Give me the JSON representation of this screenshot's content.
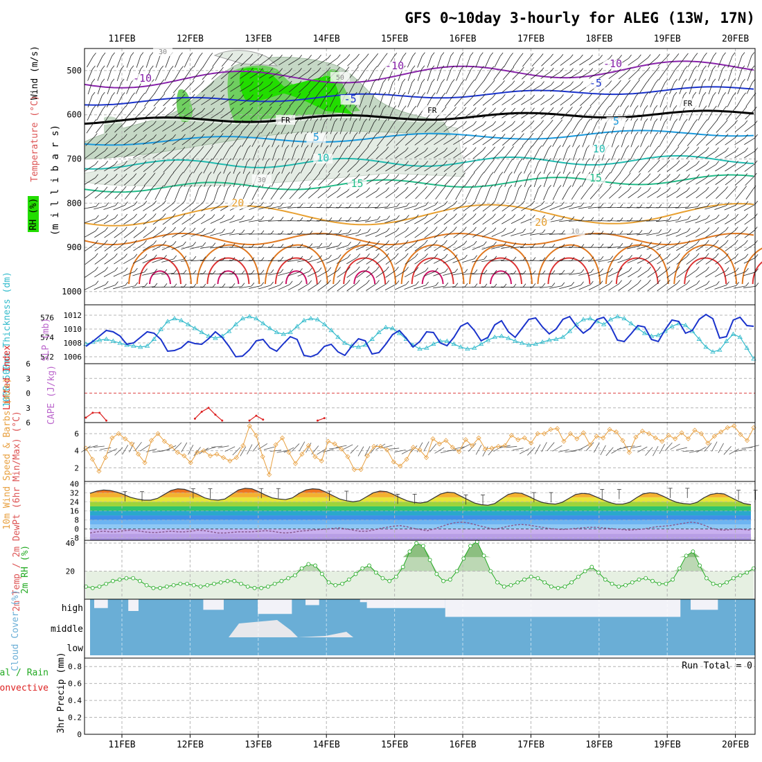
{
  "header": {
    "title": "GFS 0~10day 3-hourly for ALEG (13W, 17N)"
  },
  "colors": {
    "frame": "#000000",
    "grid": "#b4b4b4",
    "rh_green": "#22dd00",
    "slp": "#1a33cc",
    "thickness": "#33bbcc",
    "wind_speed": "#e8a040",
    "rh2m": "#22aa22",
    "cloud": "#6aaed6",
    "dewpt": "#9a6ab0",
    "precip_total": "#22aa22",
    "precip_conv": "#dd2222",
    "lifted": "#dd2222",
    "cape": "#bb66cc"
  },
  "time_axis": {
    "day_labels": [
      "11FEB",
      "12FEB",
      "13FEB",
      "14FEB",
      "15FEB",
      "16FEB",
      "17FEB",
      "18FEB",
      "19FEB",
      "20FEB"
    ]
  },
  "chart_data": [
    {
      "type": "contour",
      "panel": "upper_air",
      "ylabels": {
        "wind": "Wind (m/s)",
        "temp": "Temperature (°C)",
        "rh": "RH (%)",
        "pressure": "(m i l l i b a r s)"
      },
      "ylim": [
        1030,
        450
      ],
      "yticks": [
        500,
        600,
        700,
        800,
        900,
        1000
      ],
      "isotherm_labels": [
        {
          "text": "-10",
          "t": 0.3
        },
        {
          "text": "-10",
          "t": 4.0
        },
        {
          "text": "-10",
          "t": 7.2
        },
        {
          "text": "-5",
          "t": 3.35
        },
        {
          "text": "-5",
          "t": 6.95
        },
        {
          "text": "FR",
          "t": 2.4
        },
        {
          "text": "FR",
          "t": 4.55
        },
        {
          "text": "FR",
          "t": 8.3
        },
        {
          "text": "5",
          "t": 2.85
        },
        {
          "text": "5",
          "t": 7.25
        },
        {
          "text": "10",
          "t": 2.95
        },
        {
          "text": "10",
          "t": 7.0
        },
        {
          "text": "15",
          "t": 3.45
        },
        {
          "text": "15",
          "t": 6.95
        },
        {
          "text": "20",
          "t": 1.7
        },
        {
          "text": "20",
          "t": 6.15
        },
        {
          "text": "30",
          "t": 2.05
        },
        {
          "text": "30",
          "t": 0.6
        },
        {
          "text": "50",
          "t": 3.2
        },
        {
          "text": "10",
          "t": 6.65
        }
      ]
    },
    {
      "type": "line",
      "panel": "slp_thickness",
      "ylabel_left": "1000-500mb Thickness (dm)",
      "ylabel_right": "SLP (mb)",
      "left_ticks": [
        572,
        574,
        576
      ],
      "right_ticks": [
        1006,
        1008,
        1010,
        1012
      ],
      "slp_range": [
        1005,
        1013.5
      ],
      "thickness_range": [
        571.3,
        577.3
      ],
      "series": [
        {
          "name": "SLP (mb)",
          "values": [
            1007.5,
            1008.2,
            1009.0,
            1009.8,
            1009.6,
            1009.0,
            1007.8,
            1008.0,
            1008.8,
            1009.6,
            1009.4,
            1008.5,
            1006.8,
            1006.9,
            1007.3,
            1008.2,
            1007.9,
            1007.8,
            1008.6,
            1009.6,
            1008.8,
            1007.5,
            1006.0,
            1006.1,
            1007.0,
            1008.3,
            1008.5,
            1007.3,
            1006.8,
            1007.9,
            1008.9,
            1008.5,
            1006.2,
            1006.0,
            1006.4,
            1007.5,
            1007.8,
            1006.7,
            1006.2,
            1007.5,
            1008.6,
            1008.3,
            1006.4,
            1006.6,
            1007.8,
            1009.2,
            1009.8,
            1008.7,
            1007.4,
            1008.2,
            1009.6,
            1009.5,
            1008.0,
            1007.6,
            1008.8,
            1010.4,
            1010.9,
            1009.8,
            1008.3,
            1008.8,
            1010.6,
            1011.2,
            1009.6,
            1008.8,
            1010.1,
            1011.4,
            1011.6,
            1010.3,
            1009.3,
            1010.0,
            1011.4,
            1011.8,
            1010.4,
            1009.4,
            1010.1,
            1011.4,
            1011.7,
            1010.4,
            1008.4,
            1008.2,
            1009.3,
            1010.5,
            1010.3,
            1008.5,
            1008.2,
            1009.9,
            1011.3,
            1011.1,
            1009.4,
            1009.8,
            1011.4,
            1012.1,
            1011.5,
            1008.7,
            1008.9,
            1011.3,
            1011.7,
            1010.5,
            1010.4
          ]
        },
        {
          "name": "1000-500mb Thickness (dm)",
          "values": [
            573.3,
            573.5,
            573.7,
            573.8,
            573.6,
            573.4,
            573.2,
            573.1,
            573.0,
            573.1,
            573.8,
            574.8,
            575.6,
            575.9,
            575.7,
            575.3,
            574.9,
            574.5,
            574.1,
            573.9,
            574.1,
            574.6,
            575.3,
            575.9,
            576.1,
            575.9,
            575.4,
            574.9,
            574.5,
            574.3,
            574.5,
            575.1,
            575.7,
            575.9,
            575.8,
            575.3,
            574.7,
            574.0,
            573.4,
            573.1,
            573.0,
            573.2,
            573.8,
            574.5,
            575.0,
            574.9,
            574.4,
            573.8,
            573.2,
            572.8,
            572.9,
            573.3,
            573.6,
            573.6,
            573.3,
            573.0,
            572.8,
            572.9,
            573.3,
            573.7,
            574.0,
            574.1,
            573.9,
            573.6,
            573.4,
            573.2,
            573.3,
            573.5,
            573.7,
            573.8,
            574.0,
            574.6,
            575.3,
            575.8,
            575.9,
            575.6,
            575.3,
            575.8,
            576.1,
            575.9,
            575.4,
            574.9,
            574.4,
            574.1,
            574.2,
            574.6,
            575.1,
            575.4,
            575.2,
            574.6,
            573.8,
            573.0,
            572.5,
            572.7,
            573.6,
            574.3,
            574.0,
            572.9,
            571.8
          ]
        }
      ]
    },
    {
      "type": "line",
      "panel": "cape_lifted",
      "ylabel_lifted": "Lifted Index",
      "ylabel_cape": "CAPE (J/kg)",
      "yticks": [
        6,
        3,
        0,
        3,
        6
      ],
      "series": [
        {
          "name": "Lifted Index",
          "segments": [
            [
              [
                0,
                5.0
              ],
              [
                1,
                4.0
              ],
              [
                2,
                4.0
              ],
              [
                3,
                5.6
              ]
            ],
            [
              [
                16,
                5.2
              ],
              [
                17,
                3.8
              ],
              [
                18,
                3.0
              ],
              [
                19,
                4.4
              ],
              [
                20,
                5.6
              ]
            ],
            [
              [
                24,
                5.6
              ],
              [
                25,
                4.6
              ],
              [
                26,
                5.4
              ]
            ],
            [
              [
                34,
                5.6
              ],
              [
                35,
                5.1
              ]
            ]
          ]
        },
        {
          "name": "CAPE (J/kg)",
          "values": []
        }
      ]
    },
    {
      "type": "line",
      "panel": "wind10m",
      "ylabel": "10m Wind Speed & Barbs (m/s)",
      "yticks": [
        2,
        4,
        6
      ],
      "ylim": [
        0.4,
        7.3
      ],
      "series": [
        {
          "name": "10m Wind Speed (m/s)",
          "values": [
            4.3,
            3.0,
            1.6,
            3.2,
            5.5,
            6.0,
            5.4,
            4.8,
            3.6,
            2.6,
            5.2,
            6.0,
            5.1,
            4.5,
            3.8,
            3.4,
            2.6,
            3.8,
            4.0,
            3.4,
            3.6,
            3.2,
            2.8,
            3.2,
            4.6,
            6.9,
            5.8,
            3.3,
            1.2,
            4.7,
            5.5,
            3.8,
            2.5,
            3.6,
            4.6,
            3.3,
            2.8,
            5.1,
            4.8,
            4.2,
            3.3,
            1.8,
            1.8,
            3.4,
            4.5,
            4.5,
            4.1,
            2.7,
            2.2,
            3.0,
            4.4,
            4.1,
            3.2,
            5.4,
            4.8,
            5.2,
            4.4,
            3.9,
            5.3,
            4.6,
            5.5,
            4.2,
            4.3,
            4.5,
            4.6,
            5.8,
            5.3,
            5.5,
            4.9,
            6.0,
            6.0,
            6.5,
            6.6,
            5.1,
            6.0,
            5.4,
            6.1,
            4.7,
            5.7,
            5.5,
            6.5,
            6.2,
            5.2,
            3.8,
            5.6,
            6.3,
            6.0,
            5.5,
            5.1,
            5.8,
            5.4,
            6.1,
            5.4,
            6.4,
            6.0,
            4.9,
            5.7,
            6.2,
            6.7,
            6.9,
            5.9,
            5.2,
            6.7
          ]
        }
      ]
    },
    {
      "type": "area",
      "panel": "temp2m",
      "ylabel": "2m Temp / 2m DewPt (6hr Min/Max) (°C)",
      "yticks": [
        -8,
        0,
        8,
        16,
        24,
        32,
        40
      ],
      "ylim": [
        -10,
        42
      ],
      "series": [
        {
          "name": "2m Temp (°C)",
          "values": [
            31.5,
            33.5,
            34.5,
            34.0,
            32.5,
            30.5,
            28.0,
            26.5,
            25.5,
            25.5,
            27.0,
            30.5,
            34.0,
            35.5,
            35.0,
            33.0,
            30.5,
            27.5,
            26.0,
            25.5,
            26.5,
            30.5,
            34.5,
            36.0,
            35.5,
            33.0,
            30.0,
            27.5,
            26.5,
            26.0,
            27.5,
            31.5,
            34.5,
            35.5,
            35.0,
            32.5,
            29.5,
            26.5,
            25.0,
            24.0,
            25.0,
            28.5,
            32.0,
            33.5,
            33.0,
            30.5,
            27.5,
            25.0,
            23.5,
            23.0,
            24.0,
            27.5,
            31.0,
            32.5,
            32.0,
            29.0,
            26.0,
            23.0,
            21.5,
            21.0,
            22.5,
            26.5,
            30.5,
            32.0,
            31.5,
            29.0,
            26.0,
            23.5,
            22.5,
            22.0,
            23.5,
            27.0,
            30.5,
            31.5,
            31.0,
            28.5,
            26.0,
            23.5,
            22.0,
            22.0,
            23.5,
            27.5,
            31.0,
            32.0,
            31.5,
            29.0,
            26.0,
            23.5,
            22.5,
            22.0,
            23.5,
            27.5,
            30.5,
            31.5,
            31.0,
            28.0,
            25.0,
            22.5,
            21.5
          ]
        },
        {
          "name": "2m DewPt (°C)",
          "values": [
            -3.5,
            -2.5,
            -2.0,
            -2.5,
            -2.5,
            -1.5,
            -1.0,
            -1.5,
            -2.5,
            -3.0,
            -3.0,
            -2.5,
            -2.0,
            -2.5,
            -2.5,
            -2.0,
            -1.0,
            -1.5,
            -2.5,
            -3.5,
            -3.5,
            -3.0,
            -2.5,
            -2.5,
            -2.5,
            -2.0,
            -1.5,
            -2.0,
            -3.0,
            -3.5,
            -3.0,
            -2.0,
            -1.5,
            -1.0,
            -0.5,
            0.0,
            0.5,
            1.0,
            0.0,
            -1.0,
            -2.0,
            -2.0,
            -1.0,
            0.5,
            1.5,
            2.5,
            3.0,
            2.0,
            0.5,
            -0.5,
            -1.5,
            0.0,
            2.0,
            4.0,
            5.5,
            6.0,
            5.5,
            4.0,
            2.5,
            1.0,
            0.0,
            1.0,
            2.5,
            3.5,
            4.0,
            3.5,
            2.5,
            1.5,
            0.5,
            0.0,
            -0.5,
            0.0,
            0.5,
            1.0,
            1.5,
            1.5,
            1.0,
            0.5,
            0.0,
            -0.5,
            -1.0,
            -0.5,
            0.0,
            1.0,
            2.0,
            2.5,
            3.0,
            4.0,
            5.0,
            6.0,
            5.5,
            3.5,
            1.0,
            -0.5,
            -1.0,
            -0.5,
            0.0,
            -0.5,
            -1.0
          ]
        }
      ]
    },
    {
      "type": "area",
      "panel": "rh2m",
      "ylabel": "2m RH (%)",
      "yticks": [
        20,
        40
      ],
      "ylim": [
        0,
        42
      ],
      "series": [
        {
          "name": "2m RH (%)",
          "values": [
            9,
            8,
            9,
            11,
            13,
            14,
            15,
            15,
            13,
            10,
            8,
            8,
            9,
            10,
            11,
            11,
            10,
            9,
            10,
            11,
            12,
            13,
            13,
            11,
            9,
            8,
            8,
            9,
            11,
            13,
            15,
            17,
            22,
            25,
            24,
            18,
            12,
            10,
            11,
            14,
            18,
            22,
            24,
            19,
            15,
            13,
            16,
            23,
            34,
            40,
            38,
            28,
            18,
            13,
            14,
            20,
            29,
            38,
            41,
            31,
            20,
            12,
            9,
            10,
            12,
            14,
            16,
            15,
            12,
            9,
            8,
            9,
            12,
            16,
            20,
            23,
            19,
            14,
            11,
            9,
            10,
            12,
            14,
            15,
            13,
            11,
            11,
            14,
            22,
            31,
            34,
            24,
            15,
            11,
            10,
            12,
            15,
            17,
            19,
            22
          ]
        }
      ]
    },
    {
      "type": "heatmap",
      "panel": "cloud_cover",
      "ylabel": "Cloud Cover (%)",
      "levels": [
        "high",
        "middle",
        "low"
      ]
    },
    {
      "type": "bar",
      "panel": "precip",
      "ylabel": "3hr Precip (mm)",
      "legend": [
        "Total / Rain",
        "Convective"
      ],
      "yticks": [
        "0",
        "0.2",
        "0.4",
        "0.6",
        "0.8"
      ],
      "ylim": [
        0,
        0.9
      ],
      "run_total": "Run Total = 0",
      "values": []
    }
  ]
}
